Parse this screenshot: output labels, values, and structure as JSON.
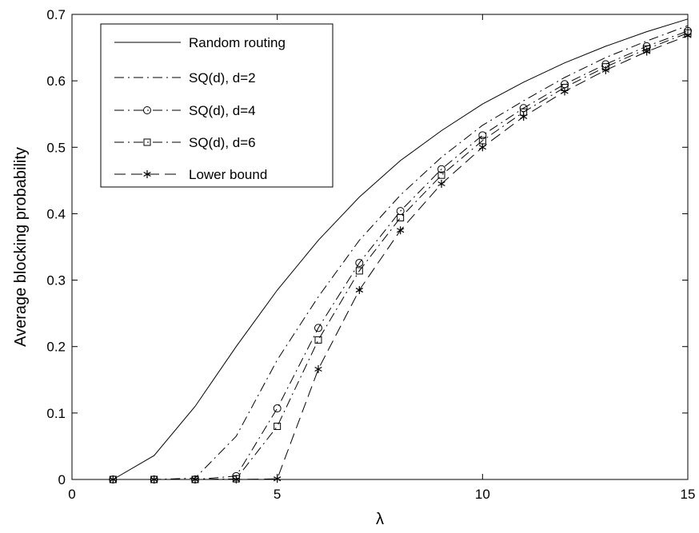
{
  "chart_data": {
    "type": "line",
    "title": "",
    "xlabel": "λ",
    "ylabel": "Average blocking probability",
    "xlim": [
      0,
      15
    ],
    "ylim": [
      0,
      0.7
    ],
    "xticks": [
      0,
      5,
      10,
      15
    ],
    "yticks": [
      0,
      0.1,
      0.2,
      0.3,
      0.4,
      0.5,
      0.6,
      0.7
    ],
    "xtick_labels": [
      "0",
      "5",
      "10",
      "15"
    ],
    "ytick_labels": [
      "0",
      "0.1",
      "0.2",
      "0.3",
      "0.4",
      "0.5",
      "0.6",
      "0.7"
    ],
    "grid": false,
    "legend_position": "top-left",
    "series": [
      {
        "name": "Random routing",
        "line_style": "solid",
        "marker": "none",
        "x": [
          1,
          2,
          3,
          4,
          5,
          6,
          7,
          8,
          9,
          10,
          11,
          12,
          13,
          14,
          15
        ],
        "y": [
          0,
          0.036,
          0.11,
          0.2,
          0.285,
          0.36,
          0.425,
          0.48,
          0.525,
          0.565,
          0.598,
          0.627,
          0.652,
          0.674,
          0.693
        ]
      },
      {
        "name": "SQ(d), d=2",
        "line_style": "dashdot",
        "marker": "none",
        "x": [
          1,
          2,
          3,
          4,
          5,
          6,
          7,
          8,
          9,
          10,
          11,
          12,
          13,
          14,
          15
        ],
        "y": [
          0,
          0,
          0.002,
          0.065,
          0.18,
          0.275,
          0.36,
          0.428,
          0.485,
          0.533,
          0.57,
          0.605,
          0.635,
          0.66,
          0.683
        ]
      },
      {
        "name": "SQ(d), d=4",
        "line_style": "dashdot",
        "marker": "circle",
        "x": [
          1,
          2,
          3,
          4,
          5,
          6,
          7,
          8,
          9,
          10,
          11,
          12,
          13,
          14,
          15
        ],
        "y": [
          0,
          0,
          0,
          0.005,
          0.107,
          0.228,
          0.326,
          0.404,
          0.467,
          0.518,
          0.559,
          0.595,
          0.625,
          0.652,
          0.675
        ]
      },
      {
        "name": "SQ(d), d=6",
        "line_style": "dashdot",
        "marker": "square",
        "x": [
          1,
          2,
          3,
          4,
          5,
          6,
          7,
          8,
          9,
          10,
          11,
          12,
          13,
          14,
          15
        ],
        "y": [
          0,
          0,
          0,
          0.001,
          0.08,
          0.21,
          0.314,
          0.394,
          0.458,
          0.51,
          0.553,
          0.59,
          0.621,
          0.648,
          0.672
        ]
      },
      {
        "name": "Lower bound",
        "line_style": "dashed",
        "marker": "asterisk",
        "x": [
          1,
          2,
          3,
          4,
          5,
          6,
          7,
          8,
          9,
          10,
          11,
          12,
          13,
          14,
          15
        ],
        "y": [
          0,
          0,
          0,
          0,
          0.001,
          0.166,
          0.285,
          0.375,
          0.445,
          0.5,
          0.546,
          0.584,
          0.616,
          0.644,
          0.668
        ]
      }
    ]
  }
}
